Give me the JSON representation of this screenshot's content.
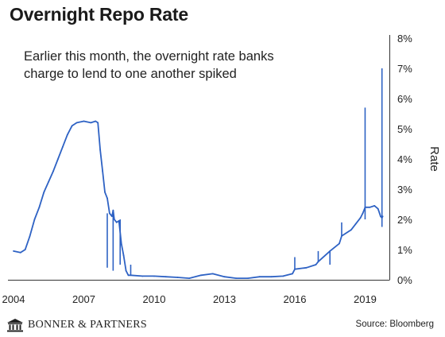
{
  "title": "Overnight Repo Rate",
  "annotation": "Earlier this month, the overnight rate banks charge to lend to one another spiked",
  "branding": {
    "logo_text": "BONNER & PARTNERS",
    "logo_icon": "building-columns-icon"
  },
  "source": "Source: Bloomberg",
  "chart_data": {
    "type": "line",
    "title": "Overnight Repo Rate",
    "xlabel": "",
    "ylabel": "Rate",
    "xlim": [
      2004,
      2019.9
    ],
    "ylim": [
      0,
      8
    ],
    "x_ticks": [
      "2004",
      "2007",
      "2010",
      "2013",
      "2016",
      "2019"
    ],
    "x_tick_values": [
      2004,
      2007,
      2010,
      2013,
      2016,
      2019
    ],
    "y_ticks": [
      "0%",
      "1%",
      "2%",
      "3%",
      "4%",
      "5%",
      "6%",
      "7%",
      "8%"
    ],
    "y_tick_values": [
      0,
      1,
      2,
      3,
      4,
      5,
      6,
      7,
      8
    ],
    "grid": false,
    "y_axis_side": "right",
    "color": "#2e62c4",
    "series": [
      {
        "x": [
          2004.0,
          2004.3,
          2004.5,
          2004.7,
          2004.9,
          2005.1,
          2005.3,
          2005.5,
          2005.7,
          2005.9,
          2006.1,
          2006.3,
          2006.5,
          2006.7,
          2007.0,
          2007.3,
          2007.5,
          2007.6,
          2007.7,
          2007.8,
          2007.9,
          2008.0,
          2008.1,
          2008.2,
          2008.25,
          2008.3,
          2008.4,
          2008.5,
          2008.6,
          2008.7,
          2008.8,
          2008.9,
          2009.0,
          2009.5,
          2010.0,
          2010.5,
          2011.0,
          2011.5,
          2012.0,
          2012.5,
          2013.0,
          2013.5,
          2014.0,
          2014.5,
          2015.0,
          2015.5,
          2015.9,
          2016.0,
          2016.5,
          2016.9,
          2017.0,
          2017.5,
          2017.9,
          2018.0,
          2018.4,
          2018.6,
          2018.8,
          2018.9,
          2019.0,
          2019.2,
          2019.4,
          2019.55,
          2019.62,
          2019.66,
          2019.72,
          2019.75
        ],
        "y": [
          0.95,
          0.9,
          1.0,
          1.45,
          2.0,
          2.4,
          2.9,
          3.25,
          3.6,
          4.0,
          4.4,
          4.8,
          5.1,
          5.2,
          5.25,
          5.2,
          5.25,
          5.2,
          4.3,
          3.6,
          2.9,
          2.7,
          2.2,
          2.1,
          2.3,
          2.0,
          1.9,
          1.95,
          1.2,
          0.8,
          0.3,
          0.15,
          0.15,
          0.12,
          0.12,
          0.1,
          0.08,
          0.05,
          0.15,
          0.2,
          0.1,
          0.05,
          0.05,
          0.1,
          0.1,
          0.12,
          0.2,
          0.35,
          0.4,
          0.5,
          0.6,
          0.95,
          1.2,
          1.45,
          1.65,
          1.85,
          2.05,
          2.2,
          2.4,
          2.4,
          2.45,
          2.35,
          2.2,
          2.1,
          2.05,
          2.1
        ],
        "spikes": [
          {
            "x": 2008.0,
            "y": 2.2,
            "to": 0.4
          },
          {
            "x": 2008.25,
            "y": 2.3,
            "to": 0.3
          },
          {
            "x": 2008.55,
            "y": 2.0,
            "to": 0.5
          },
          {
            "x": 2009.0,
            "y": 0.15,
            "to": 0.5
          },
          {
            "x": 2016.0,
            "y": 0.35,
            "to": 0.75
          },
          {
            "x": 2017.0,
            "y": 0.6,
            "to": 0.95
          },
          {
            "x": 2017.5,
            "y": 0.95,
            "to": 0.5
          },
          {
            "x": 2018.0,
            "y": 1.45,
            "to": 1.9
          },
          {
            "x": 2019.0,
            "y": 2.4,
            "to": 5.7
          },
          {
            "x": 2019.0,
            "y": 2.4,
            "to": 2.0
          },
          {
            "x": 2019.72,
            "y": 2.05,
            "to": 7.0
          },
          {
            "x": 2019.72,
            "y": 2.05,
            "to": 1.75
          }
        ]
      }
    ]
  }
}
